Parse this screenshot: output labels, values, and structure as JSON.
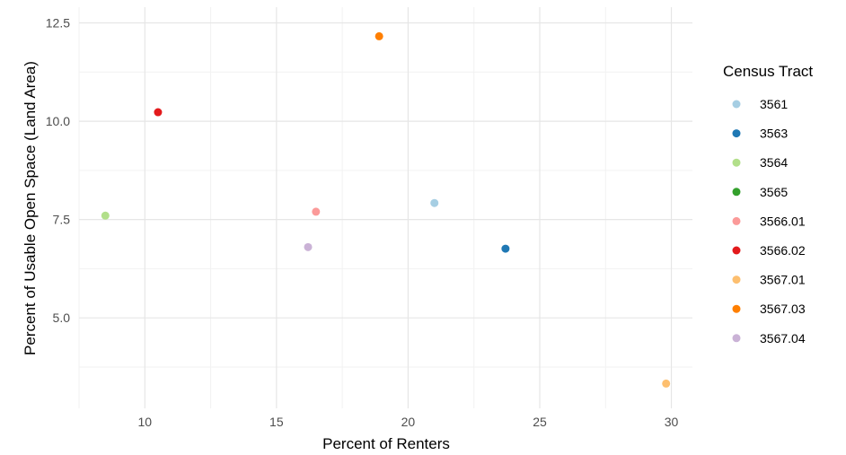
{
  "chart_data": {
    "type": "scatter",
    "title": "",
    "xlabel": "Percent of Renters",
    "ylabel": "Percent of Usable Open Space (Land Area)",
    "xlim": [
      7.5,
      30.8
    ],
    "ylim": [
      2.7,
      12.9
    ],
    "x_ticks": [
      10,
      15,
      20,
      25,
      30
    ],
    "y_ticks": [
      5.0,
      7.5,
      10.0,
      12.5
    ],
    "x_tick_labels": [
      "10",
      "15",
      "20",
      "25",
      "30"
    ],
    "y_tick_labels": [
      "5.0",
      "7.5",
      "10.0",
      "12.5"
    ],
    "grid": true,
    "legend": {
      "title": "Census Tract",
      "placement": "right",
      "entries": [
        {
          "label": "3561",
          "color": "#a6cee3"
        },
        {
          "label": "3563",
          "color": "#1f78b4"
        },
        {
          "label": "3564",
          "color": "#b2df8a"
        },
        {
          "label": "3565",
          "color": "#33a02c"
        },
        {
          "label": "3566.01",
          "color": "#fb9a99"
        },
        {
          "label": "3566.02",
          "color": "#e31a1c"
        },
        {
          "label": "3567.01",
          "color": "#fdbf6f"
        },
        {
          "label": "3567.03",
          "color": "#ff7f00"
        },
        {
          "label": "3567.04",
          "color": "#cab2d6"
        }
      ]
    },
    "points": [
      {
        "series": "3561",
        "x": 21.0,
        "y": 7.92
      },
      {
        "series": "3563",
        "x": 23.7,
        "y": 6.76
      },
      {
        "series": "3564",
        "x": 8.5,
        "y": 7.6
      },
      {
        "series": "3566.01",
        "x": 16.5,
        "y": 7.7
      },
      {
        "series": "3566.02",
        "x": 10.5,
        "y": 10.23
      },
      {
        "series": "3567.01",
        "x": 29.8,
        "y": 3.33
      },
      {
        "series": "3567.03",
        "x": 18.9,
        "y": 12.16
      },
      {
        "series": "3567.04",
        "x": 16.2,
        "y": 6.8
      }
    ]
  }
}
